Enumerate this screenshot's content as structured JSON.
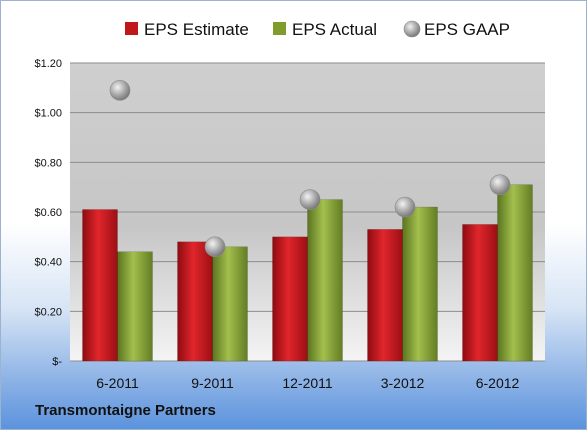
{
  "company_name": "Transmontaigne Partners",
  "chart_data": {
    "type": "bar",
    "categories": [
      "6-2011",
      "9-2011",
      "12-2011",
      "3-2012",
      "6-2012"
    ],
    "series": [
      {
        "name": "EPS Estimate",
        "kind": "bar",
        "color": "#c0161c",
        "values": [
          0.61,
          0.48,
          0.5,
          0.53,
          0.55
        ]
      },
      {
        "name": "EPS Actual",
        "kind": "bar",
        "color": "#7f9c2c",
        "values": [
          0.44,
          0.46,
          0.65,
          0.62,
          0.71
        ]
      },
      {
        "name": "EPS GAAP",
        "kind": "marker",
        "color": "#a6a6a6",
        "values": [
          1.09,
          0.46,
          0.65,
          0.62,
          0.71
        ]
      }
    ],
    "y_ticks": [
      {
        "value": 0,
        "label": "$-"
      },
      {
        "value": 0.2,
        "label": "$0.20"
      },
      {
        "value": 0.4,
        "label": "$0.40"
      },
      {
        "value": 0.6,
        "label": "$0.60"
      },
      {
        "value": 0.8,
        "label": "$0.80"
      },
      {
        "value": 1.0,
        "label": "$1.00"
      },
      {
        "value": 1.2,
        "label": "$1.20"
      }
    ],
    "ylim": [
      0,
      1.2
    ],
    "legend_position": "top",
    "grid": true
  }
}
